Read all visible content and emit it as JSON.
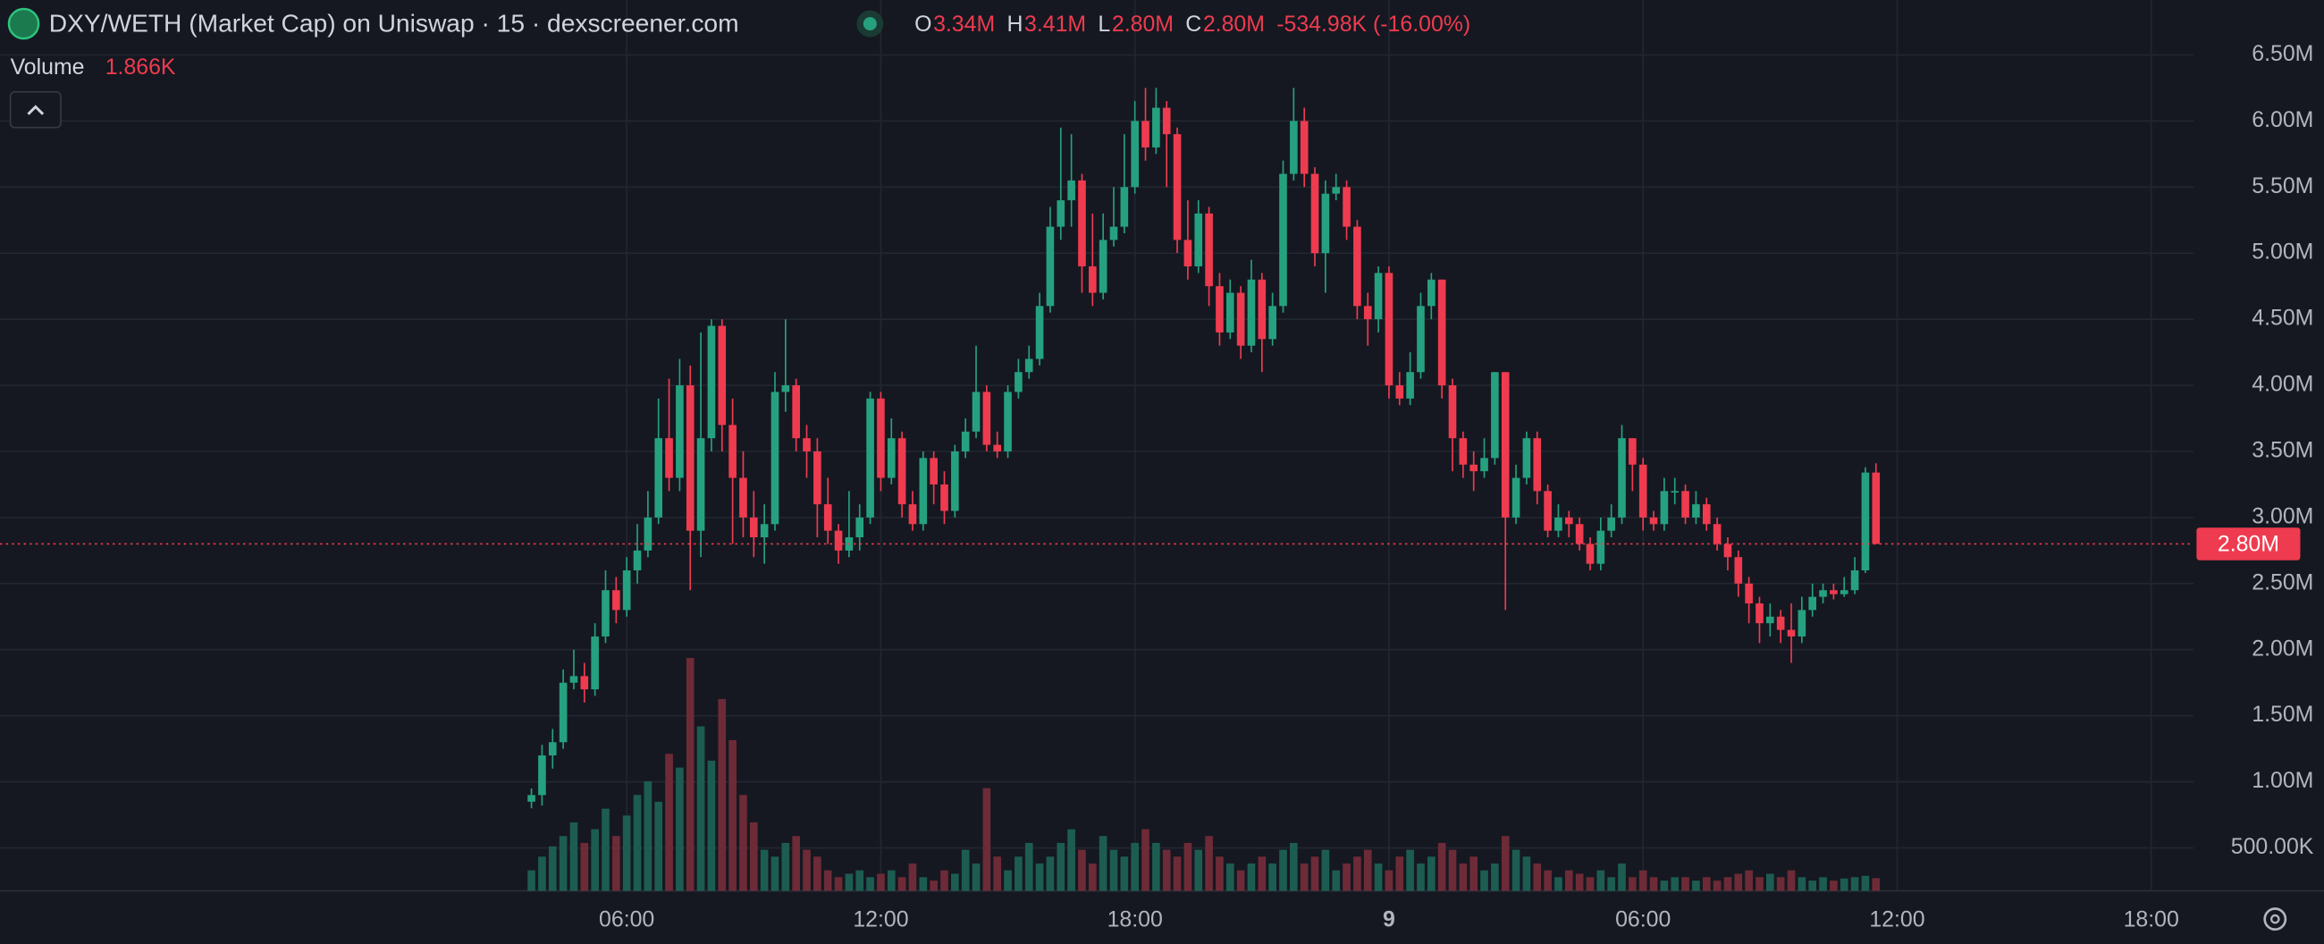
{
  "chart_data": {
    "type": "candlestick",
    "title": "DXY/WETH (Market Cap) on Uniswap · 15 · dexscreener.com",
    "legend": {
      "keys": [
        "O",
        "H",
        "L",
        "C"
      ],
      "values": [
        {
          "value": 3.34,
          "label": "3.34M"
        },
        {
          "value": 3.41,
          "label": "3.41M"
        },
        {
          "value": 2.8,
          "label": "2.80M"
        },
        {
          "value": 2.8,
          "label": "2.80M"
        }
      ],
      "change": "-534.98K (-16.00%)"
    },
    "volume_legend": {
      "label": "Volume",
      "value": {
        "value": 1.866,
        "label": "1.866K"
      }
    },
    "last_price": {
      "value": 2.8,
      "label": "2.80M"
    },
    "up_color": "#26a17f",
    "down_color": "#ef3b4f",
    "volume_up_color": "#1d5d51",
    "volume_down_color": "#6d2b37",
    "grid": true,
    "xlim": [
      -8.8,
      43.0
    ],
    "xticks": [
      {
        "value": 6,
        "label": "06:00"
      },
      {
        "value": 12,
        "label": "12:00"
      },
      {
        "value": 18,
        "label": "18:00"
      },
      {
        "value": 24,
        "label": "9"
      },
      {
        "value": 30,
        "label": "06:00"
      },
      {
        "value": 36,
        "label": "12:00"
      },
      {
        "value": 42,
        "label": "18:00"
      }
    ],
    "ylim": [
      0.175,
      6.915
    ],
    "yticks": [
      {
        "value": 0.5,
        "label": "500.00K"
      },
      {
        "value": 1,
        "label": "1.00M"
      },
      {
        "value": 1.5,
        "label": "1.50M"
      },
      {
        "value": 2,
        "label": "2.00M"
      },
      {
        "value": 2.5,
        "label": "2.50M"
      },
      {
        "value": 3,
        "label": "3.00M"
      },
      {
        "value": 3.5,
        "label": "3.50M"
      },
      {
        "value": 4,
        "label": "4.00M"
      },
      {
        "value": 4.5,
        "label": "4.50M"
      },
      {
        "value": 5,
        "label": "5.00M"
      },
      {
        "value": 5.5,
        "label": "5.50M"
      },
      {
        "value": 6,
        "label": "6.00M"
      },
      {
        "value": 6.5,
        "label": "6.50M"
      }
    ],
    "y2lim": [
      0,
      130
    ],
    "x": [
      3.75,
      4,
      4.25,
      4.5,
      4.75,
      5,
      5.25,
      5.5,
      5.75,
      6,
      6.25,
      6.5,
      6.75,
      7,
      7.25,
      7.5,
      7.75,
      8,
      8.25,
      8.5,
      8.75,
      9,
      9.25,
      9.5,
      9.75,
      10,
      10.25,
      10.5,
      10.75,
      11,
      11.25,
      11.5,
      11.75,
      12,
      12.25,
      12.5,
      12.75,
      13,
      13.25,
      13.5,
      13.75,
      14,
      14.25,
      14.5,
      14.75,
      15,
      15.25,
      15.5,
      15.75,
      16,
      16.25,
      16.5,
      16.75,
      17,
      17.25,
      17.5,
      17.75,
      18,
      18.25,
      18.5,
      18.75,
      19,
      19.25,
      19.5,
      19.75,
      20,
      20.25,
      20.5,
      20.75,
      21,
      21.25,
      21.5,
      21.75,
      22,
      22.25,
      22.5,
      22.75,
      23,
      23.25,
      23.5,
      23.75,
      24,
      24.25,
      24.5,
      24.75,
      25,
      25.25,
      25.5,
      25.75,
      26,
      26.25,
      26.5,
      26.75,
      27,
      27.25,
      27.5,
      27.75,
      28,
      28.25,
      28.5,
      28.75,
      29,
      29.25,
      29.5,
      29.75,
      30,
      30.25,
      30.5,
      30.75,
      31,
      31.25,
      31.5,
      31.75,
      32,
      32.25,
      32.5,
      32.75,
      33,
      33.25,
      33.5,
      33.75,
      34,
      34.25,
      34.5,
      34.75,
      35,
      35.25,
      35.5
    ],
    "open": [
      0.85,
      0.9,
      1.2,
      1.3,
      1.75,
      1.8,
      1.7,
      2.1,
      2.45,
      2.3,
      2.6,
      2.75,
      3.0,
      3.6,
      3.3,
      4.0,
      2.9,
      3.6,
      4.45,
      3.7,
      3.3,
      3.0,
      2.85,
      2.95,
      3.95,
      4.0,
      3.6,
      3.5,
      3.1,
      2.9,
      2.75,
      2.85,
      3.0,
      3.9,
      3.3,
      3.6,
      3.1,
      2.95,
      3.45,
      3.25,
      3.05,
      3.5,
      3.65,
      3.95,
      3.55,
      3.5,
      3.95,
      4.1,
      4.2,
      4.6,
      5.2,
      5.4,
      5.55,
      4.9,
      4.7,
      5.1,
      5.2,
      5.5,
      6.0,
      5.8,
      6.1,
      5.9,
      5.1,
      4.9,
      5.3,
      4.75,
      4.4,
      4.7,
      4.3,
      4.8,
      4.35,
      4.6,
      5.6,
      6.0,
      5.6,
      5.0,
      5.45,
      5.5,
      5.2,
      4.6,
      4.5,
      4.85,
      4.0,
      3.9,
      4.1,
      4.6,
      4.8,
      4.0,
      3.6,
      3.4,
      3.35,
      3.45,
      4.1,
      3.0,
      3.3,
      3.6,
      3.2,
      2.9,
      3.0,
      2.95,
      2.8,
      2.65,
      2.9,
      3.0,
      3.6,
      3.4,
      3.0,
      2.95,
      3.2,
      3.2,
      3.0,
      3.1,
      2.95,
      2.8,
      2.7,
      2.5,
      2.35,
      2.2,
      2.25,
      2.15,
      2.1,
      2.3,
      2.4,
      2.45,
      2.42,
      2.45,
      2.6,
      3.34
    ],
    "high": [
      0.95,
      1.28,
      1.4,
      1.85,
      2.0,
      1.9,
      2.2,
      2.6,
      2.55,
      2.7,
      2.95,
      3.2,
      3.9,
      4.05,
      4.2,
      4.15,
      4.4,
      4.5,
      4.5,
      3.9,
      3.5,
      3.2,
      3.1,
      4.1,
      4.5,
      4.05,
      3.7,
      3.6,
      3.3,
      2.95,
      3.2,
      3.1,
      3.95,
      3.95,
      3.75,
      3.65,
      3.2,
      3.5,
      3.5,
      3.35,
      3.55,
      3.75,
      4.3,
      4.0,
      3.65,
      4.0,
      4.2,
      4.3,
      4.7,
      5.35,
      5.95,
      5.9,
      5.6,
      5.3,
      5.3,
      5.5,
      5.9,
      6.15,
      6.25,
      6.25,
      6.15,
      5.95,
      5.4,
      5.4,
      5.35,
      4.85,
      4.8,
      4.75,
      4.95,
      4.85,
      4.7,
      5.7,
      6.25,
      6.1,
      5.65,
      5.55,
      5.6,
      5.55,
      5.25,
      4.7,
      4.9,
      4.9,
      4.1,
      4.25,
      4.7,
      4.85,
      4.8,
      4.05,
      3.65,
      3.5,
      3.6,
      4.1,
      4.1,
      3.4,
      3.65,
      3.65,
      3.25,
      3.1,
      3.05,
      3.0,
      2.85,
      3.0,
      3.1,
      3.7,
      3.6,
      3.45,
      3.05,
      3.3,
      3.3,
      3.25,
      3.2,
      3.15,
      3.0,
      2.85,
      2.75,
      2.55,
      2.4,
      2.35,
      2.3,
      2.35,
      2.4,
      2.5,
      2.5,
      2.5,
      2.55,
      2.7,
      3.38,
      3.41
    ],
    "low": [
      0.8,
      0.82,
      1.1,
      1.25,
      1.7,
      1.6,
      1.65,
      2.05,
      2.2,
      2.25,
      2.5,
      2.7,
      2.95,
      3.2,
      3.2,
      2.45,
      2.7,
      3.5,
      3.5,
      2.8,
      2.85,
      2.7,
      2.65,
      2.9,
      3.8,
      3.5,
      3.3,
      2.85,
      2.8,
      2.65,
      2.7,
      2.75,
      2.95,
      3.2,
      3.25,
      3.0,
      2.9,
      2.9,
      3.1,
      2.95,
      3.0,
      3.45,
      3.6,
      3.5,
      3.45,
      3.45,
      3.9,
      4.05,
      4.15,
      4.55,
      5.1,
      5.2,
      4.7,
      4.6,
      4.65,
      5.05,
      5.15,
      5.45,
      5.7,
      5.75,
      5.5,
      5.0,
      4.8,
      4.85,
      4.6,
      4.3,
      4.35,
      4.2,
      4.25,
      4.1,
      4.3,
      4.55,
      5.55,
      5.5,
      4.9,
      4.7,
      5.4,
      5.1,
      4.5,
      4.3,
      4.4,
      3.9,
      3.85,
      3.85,
      4.05,
      4.5,
      3.9,
      3.35,
      3.3,
      3.2,
      3.3,
      3.4,
      2.3,
      2.95,
      3.25,
      3.1,
      2.85,
      2.85,
      2.85,
      2.75,
      2.6,
      2.6,
      2.85,
      2.95,
      3.2,
      2.9,
      2.9,
      2.9,
      3.1,
      2.95,
      2.95,
      2.9,
      2.75,
      2.6,
      2.4,
      2.2,
      2.05,
      2.1,
      2.05,
      1.9,
      2.05,
      2.25,
      2.35,
      2.38,
      2.4,
      2.42,
      2.58,
      2.8
    ],
    "close": [
      0.9,
      1.2,
      1.3,
      1.75,
      1.8,
      1.7,
      2.1,
      2.45,
      2.3,
      2.6,
      2.75,
      3.0,
      3.6,
      3.3,
      4.0,
      2.9,
      3.6,
      4.45,
      3.7,
      3.3,
      3.0,
      2.85,
      2.95,
      3.95,
      4.0,
      3.6,
      3.5,
      3.1,
      2.9,
      2.75,
      2.85,
      3.0,
      3.9,
      3.3,
      3.6,
      3.1,
      2.95,
      3.45,
      3.25,
      3.05,
      3.5,
      3.65,
      3.95,
      3.55,
      3.5,
      3.95,
      4.1,
      4.2,
      4.6,
      5.2,
      5.4,
      5.55,
      4.9,
      4.7,
      5.1,
      5.2,
      5.5,
      6.0,
      5.8,
      6.1,
      5.9,
      5.1,
      4.9,
      5.3,
      4.75,
      4.4,
      4.7,
      4.3,
      4.8,
      4.35,
      4.6,
      5.6,
      6.0,
      5.6,
      5.0,
      5.45,
      5.5,
      5.2,
      4.6,
      4.5,
      4.85,
      4.0,
      3.9,
      4.1,
      4.6,
      4.8,
      4.0,
      3.6,
      3.4,
      3.35,
      3.45,
      4.1,
      3.0,
      3.3,
      3.6,
      3.2,
      2.9,
      3.0,
      2.95,
      2.8,
      2.65,
      2.9,
      3.0,
      3.6,
      3.4,
      3.0,
      2.95,
      3.2,
      3.2,
      3.0,
      3.1,
      2.95,
      2.8,
      2.7,
      2.5,
      2.35,
      2.2,
      2.25,
      2.15,
      2.1,
      2.3,
      2.4,
      2.45,
      2.42,
      2.45,
      2.6,
      3.34,
      2.8
    ],
    "volume": [
      3,
      5,
      6.5,
      8,
      10,
      7,
      9,
      12,
      8,
      11,
      14,
      16,
      13,
      20,
      18,
      34,
      24,
      19,
      28,
      22,
      14,
      10,
      6,
      5,
      7,
      8,
      6,
      5,
      3,
      2,
      2.5,
      3,
      2,
      2.5,
      3,
      2,
      4,
      2,
      1.5,
      3,
      2.5,
      6,
      4,
      15,
      5,
      3,
      5,
      7,
      4,
      5,
      7,
      9,
      6,
      4,
      8,
      6,
      5,
      7,
      9,
      7,
      6,
      5,
      7,
      6,
      8,
      5,
      4,
      3,
      4,
      5,
      4,
      6,
      7,
      4,
      5,
      6,
      3,
      4,
      5,
      6,
      4,
      3,
      5,
      6,
      4,
      5,
      7,
      6,
      4,
      5,
      3,
      4,
      8,
      6,
      5,
      4,
      3,
      2,
      3,
      2.5,
      2,
      3,
      2,
      4,
      2,
      3,
      2,
      1.5,
      2,
      2,
      1.5,
      2,
      1.5,
      2,
      2.5,
      3,
      2,
      2.5,
      2,
      3,
      2,
      1.5,
      2,
      1.5,
      1.8,
      2,
      2.2,
      1.866
    ]
  }
}
